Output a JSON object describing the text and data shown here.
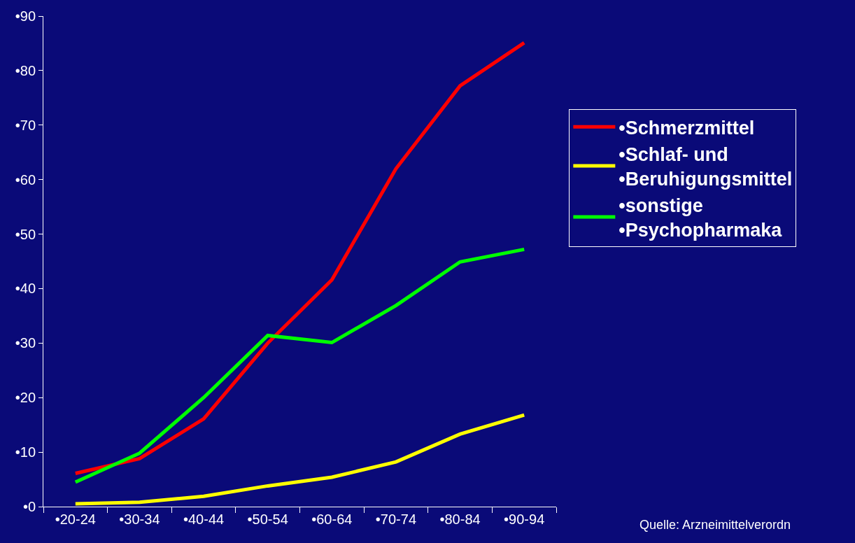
{
  "chart_data": {
    "type": "line",
    "categories": [
      "•20-24",
      "•30-34",
      "•40-44",
      "•50-54",
      "•60-64",
      "•70-74",
      "•80-84",
      "•90-94"
    ],
    "series": [
      {
        "name": "•Schmerzmittel",
        "color": "#ff0000",
        "values": [
          6.1,
          8.8,
          16.1,
          30,
          41.6,
          62,
          77.2,
          85.1
        ]
      },
      {
        "name": "•Schlaf- und\n•Beruhigungsmittel",
        "color": "#ffff00",
        "values": [
          0.5,
          0.8,
          1.9,
          3.8,
          5.4,
          8.2,
          13.3,
          16.8
        ]
      },
      {
        "name": "•sonstige\n•Psychopharmaka",
        "color": "#00ff00",
        "values": [
          4.5,
          9.8,
          20,
          31.4,
          30.1,
          36.9,
          44.9,
          47.2
        ]
      }
    ],
    "ylim": [
      0,
      90
    ],
    "yticks": [
      {
        "value": 0,
        "label": "•0"
      },
      {
        "value": 10,
        "label": "•10"
      },
      {
        "value": 20,
        "label": "•20"
      },
      {
        "value": 30,
        "label": "•30"
      },
      {
        "value": 40,
        "label": "•40"
      },
      {
        "value": 50,
        "label": "•50"
      },
      {
        "value": 60,
        "label": "•60"
      },
      {
        "value": 70,
        "label": "•70"
      },
      {
        "value": 80,
        "label": "•80"
      },
      {
        "value": 90,
        "label": "•90"
      }
    ],
    "legend": "right",
    "grid": false,
    "marker": "none",
    "line_style": "solid",
    "annotations": [
      "Quelle: Arzneimittelverordn"
    ]
  }
}
